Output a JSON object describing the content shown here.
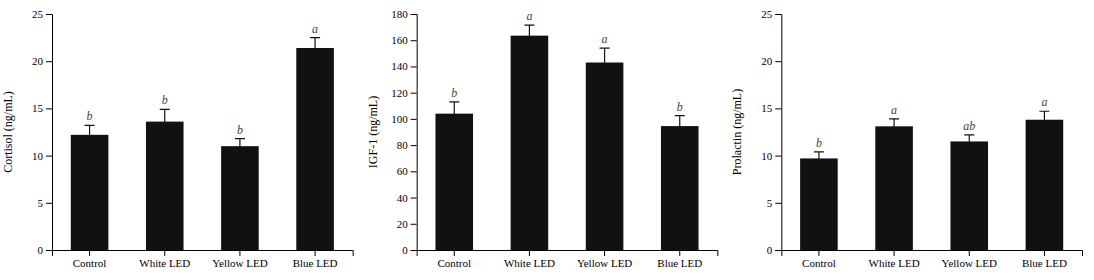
{
  "chart_data": [
    {
      "type": "bar",
      "ylabel": "Cortisol (ng/mL)",
      "categories": [
        "Control",
        "White LED",
        "Yellow LED",
        "Blue LED"
      ],
      "values": [
        12.2,
        13.6,
        11.0,
        21.4
      ],
      "errors": [
        1.0,
        1.3,
        0.8,
        1.1
      ],
      "letters": [
        "b",
        "b",
        "b",
        "a"
      ],
      "color": "#111111",
      "ylim": [
        0,
        25
      ],
      "yticks": [
        0,
        5,
        10,
        15,
        20,
        25
      ]
    },
    {
      "type": "bar",
      "ylabel": "IGF-1 (ng/mL)",
      "categories": [
        "Control",
        "White LED",
        "Yellow LED",
        "Blue LED"
      ],
      "values": [
        104.0,
        163.5,
        143.0,
        94.5
      ],
      "errors": [
        9.0,
        8.0,
        11.0,
        8.0
      ],
      "letters": [
        "b",
        "a",
        "a",
        "b"
      ],
      "color": "#111111",
      "ylim": [
        0,
        180
      ],
      "yticks": [
        0,
        20,
        40,
        60,
        80,
        100,
        120,
        140,
        160,
        180
      ]
    },
    {
      "type": "bar",
      "ylabel": "Prolactin (ng/mL)",
      "categories": [
        "Control",
        "White LED",
        "Yellow LED",
        "Blue LED"
      ],
      "values": [
        9.7,
        13.1,
        11.5,
        13.8
      ],
      "errors": [
        0.7,
        0.8,
        0.7,
        0.9
      ],
      "letters": [
        "b",
        "a",
        "ab",
        "a"
      ],
      "color": "#111111",
      "ylim": [
        0,
        25
      ],
      "yticks": [
        0,
        5,
        10,
        15,
        20,
        25
      ]
    }
  ]
}
